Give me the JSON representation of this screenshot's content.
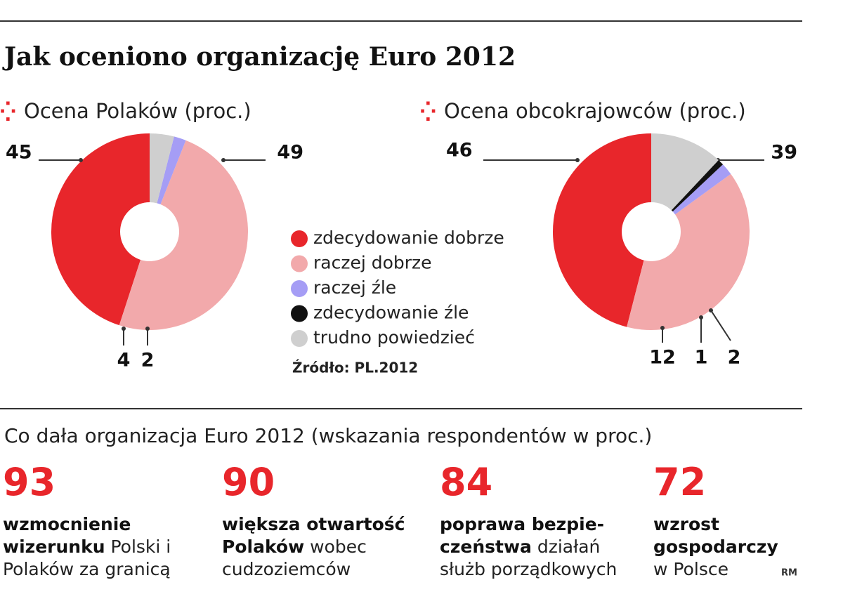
{
  "title": "Jak oceniono organizację Euro 2012",
  "legend": {
    "categories": [
      "zdecydowanie dobrze",
      "raczej dobrze",
      "raczej źle",
      "zdecydowanie źle",
      "trudno powiedzieć"
    ],
    "colors": [
      "#e8262b",
      "#f2a9ab",
      "#a59df5",
      "#111111",
      "#cfcfcf"
    ]
  },
  "chart_data": [
    {
      "type": "pie",
      "title": "Ocena Polaków (proc.)",
      "values": [
        45,
        49,
        2,
        0,
        4
      ]
    },
    {
      "type": "pie",
      "title": "Ocena obcokrajowców (proc.)",
      "values": [
        46,
        39,
        2,
        1,
        12
      ]
    }
  ],
  "source": "Źródło: PL.2012",
  "stats": {
    "title": "Co dała organizacja Euro 2012 (wskazania respondentów w proc.)",
    "items": [
      {
        "value": 93,
        "bold": "wzmocnienie wizerunku",
        "text": " Polski i Polaków za granicą"
      },
      {
        "value": 90,
        "bold": "większa otwartość Polaków",
        "text": " wobec cudzoziemców"
      },
      {
        "value": 84,
        "bold": "poprawa bezpie­czeństwa",
        "text": " działań służb porządkowych"
      },
      {
        "value": 72,
        "bold": "wzrost gospodarczy",
        "text": " w Polsce"
      }
    ]
  },
  "credit": "RM"
}
